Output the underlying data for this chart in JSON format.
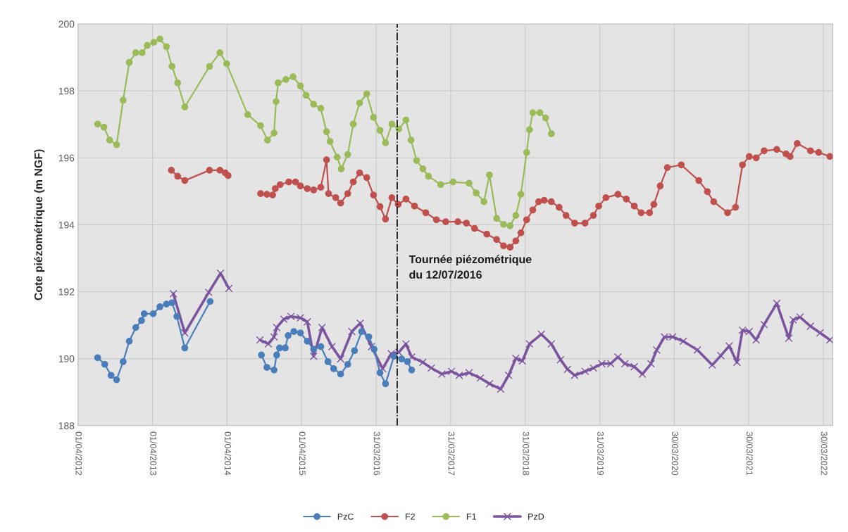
{
  "chart_data": {
    "type": "line",
    "ylabel": "Cote piézométrique (m NGF)",
    "ylim": [
      188,
      200
    ],
    "yticks": [
      188,
      190,
      192,
      194,
      196,
      198,
      200
    ],
    "xlim": [
      "2012-04-01",
      "2022-05-15"
    ],
    "xticks": [
      {
        "value": "2012-04-01",
        "label": "01/04/2012"
      },
      {
        "value": "2013-04-01",
        "label": "01/04/2013"
      },
      {
        "value": "2014-04-01",
        "label": "01/04/2014"
      },
      {
        "value": "2015-04-01",
        "label": "01/04/2015"
      },
      {
        "value": "2016-03-31",
        "label": "31/03/2016"
      },
      {
        "value": "2017-03-31",
        "label": "31/03/2017"
      },
      {
        "value": "2018-03-31",
        "label": "31/03/2018"
      },
      {
        "value": "2019-03-31",
        "label": "31/03/2019"
      },
      {
        "value": "2020-03-30",
        "label": "30/03/2020"
      },
      {
        "value": "2021-03-30",
        "label": "30/03/2021"
      },
      {
        "value": "2022-03-30",
        "label": "30/03/2022"
      }
    ],
    "grid": true,
    "legend": "bottom",
    "ref_lines": [
      {
        "axis": "x",
        "value": "2016-07-12",
        "label": "Tournée piézométrique\ndu 12/07/2016",
        "color": "#000000",
        "line_style": "dashdot"
      }
    ],
    "series": [
      {
        "name": "PzC",
        "color": "#4a7ebb",
        "marker": "circle",
        "x": [
          "2012-07-06",
          "2012-08-10",
          "2012-09-10",
          "2012-10-07",
          "2012-11-08",
          "2012-12-08",
          "2013-01-09",
          "2013-02-06",
          "2013-02-19",
          "2013-04-04",
          "2013-05-07",
          "2013-06-08",
          "2013-07-05",
          "2013-07-29",
          "2013-09-06",
          "2014-01-08",
          "2014-05-15",
          "2014-09-16",
          "2014-10-13",
          "2014-11-17",
          "2014-11-30",
          "2014-12-14",
          "2015-01-11",
          "2015-01-25",
          "2015-02-22",
          "2015-03-26",
          "2015-04-29",
          "2015-05-30",
          "2015-07-04",
          "2015-08-08",
          "2015-09-05",
          "2015-10-09",
          "2015-11-13",
          "2015-12-16",
          "2016-01-20",
          "2016-02-24",
          "2016-03-21",
          "2016-04-19",
          "2016-05-16",
          "2016-06-26",
          "2016-08-03",
          "2016-08-31",
          "2016-09-21"
        ],
        "values": [
          190.03,
          189.83,
          189.5,
          189.37,
          189.91,
          190.52,
          190.93,
          191.14,
          191.34,
          191.34,
          191.55,
          191.63,
          191.67,
          191.26,
          190.32,
          191.71,
          null,
          190.11,
          189.74,
          189.66,
          190.11,
          190.32,
          190.32,
          190.69,
          190.81,
          190.77,
          190.52,
          190.28,
          190.36,
          189.91,
          189.7,
          189.54,
          189.83,
          190.24,
          190.81,
          190.65,
          190.28,
          189.58,
          189.25,
          190.07,
          189.99,
          189.91,
          189.66
        ]
      },
      {
        "name": "F2",
        "color": "#c0504d",
        "marker": "circle",
        "x": [
          "2013-07-02",
          "2013-08-02",
          "2013-09-06",
          "2014-01-05",
          "2014-02-25",
          "2014-03-23",
          "2014-04-06",
          "2014-06-15",
          "2014-09-12",
          "2014-10-13",
          "2014-11-10",
          "2014-11-23",
          "2014-12-17",
          "2015-01-28",
          "2015-03-02",
          "2015-03-26",
          "2015-04-29",
          "2015-05-30",
          "2015-07-04",
          "2015-08-01",
          "2015-08-11",
          "2015-09-15",
          "2015-10-09",
          "2015-11-13",
          "2015-12-10",
          "2016-01-10",
          "2016-02-14",
          "2016-03-18",
          "2016-04-19",
          "2016-05-16",
          "2016-06-16",
          "2016-07-17",
          "2016-08-24",
          "2016-10-05",
          "2016-11-29",
          "2017-01-20",
          "2017-03-07",
          "2017-05-05",
          "2017-06-16",
          "2017-07-26",
          "2017-09-24",
          "2017-11-11",
          "2017-12-15",
          "2018-01-16",
          "2018-02-13",
          "2018-03-10",
          "2018-04-07",
          "2018-05-07",
          "2018-06-05",
          "2018-07-02",
          "2018-08-06",
          "2018-09-13",
          "2018-10-17",
          "2018-11-28",
          "2019-01-18",
          "2019-02-28",
          "2019-03-26",
          "2019-04-30",
          "2019-06-28",
          "2019-08-08",
          "2019-09-16",
          "2019-10-20",
          "2019-11-30",
          "2019-12-21",
          "2020-01-21",
          "2020-02-25",
          "2020-05-03",
          "2020-07-28",
          "2020-09-08",
          "2020-10-09",
          "2020-12-16",
          "2021-01-24",
          "2021-02-27",
          "2021-04-01",
          "2021-05-05",
          "2021-06-13",
          "2021-08-14",
          "2021-09-28",
          "2021-10-18",
          "2021-11-22",
          "2022-01-26",
          "2022-03-07",
          "2022-05-01"
        ],
        "values": [
          195.63,
          195.45,
          195.32,
          195.63,
          195.63,
          195.55,
          195.47,
          null,
          194.93,
          194.91,
          194.89,
          195.08,
          195.2,
          195.28,
          195.28,
          195.16,
          195.08,
          195.04,
          195.12,
          195.94,
          194.93,
          194.81,
          194.65,
          194.93,
          195.28,
          195.55,
          195.41,
          194.89,
          194.54,
          194.17,
          194.81,
          194.61,
          194.77,
          194.56,
          194.36,
          194.15,
          194.09,
          194.09,
          194.05,
          193.89,
          193.72,
          193.56,
          193.37,
          193.33,
          193.52,
          193.76,
          194.15,
          194.44,
          194.69,
          194.73,
          194.69,
          194.52,
          194.28,
          194.05,
          194.05,
          194.28,
          194.56,
          194.81,
          194.91,
          194.77,
          194.56,
          194.36,
          194.36,
          194.61,
          195.16,
          195.71,
          195.79,
          195.32,
          194.99,
          194.69,
          194.36,
          194.52,
          195.79,
          196.04,
          196.0,
          196.21,
          196.25,
          196.12,
          196.04,
          196.43,
          196.21,
          196.16,
          196.04
        ]
      },
      {
        "name": "F1",
        "color": "#9bbb59",
        "marker": "circle",
        "x": [
          "2012-07-06",
          "2012-08-06",
          "2012-09-03",
          "2012-10-07",
          "2012-11-08",
          "2012-12-08",
          "2013-01-09",
          "2013-02-09",
          "2013-03-06",
          "2013-04-07",
          "2013-05-07",
          "2013-06-08",
          "2013-07-05",
          "2013-08-02",
          "2013-09-06",
          "2014-01-05",
          "2014-02-25",
          "2014-03-30",
          "2014-07-11",
          "2014-09-12",
          "2014-10-16",
          "2014-11-17",
          "2014-11-27",
          "2014-12-07",
          "2015-01-14",
          "2015-02-18",
          "2015-03-26",
          "2015-04-23",
          "2015-05-30",
          "2015-07-04",
          "2015-08-01",
          "2015-08-18",
          "2015-09-22",
          "2015-10-12",
          "2015-11-13",
          "2015-12-10",
          "2016-01-10",
          "2016-02-14",
          "2016-03-18",
          "2016-04-19",
          "2016-05-16",
          "2016-06-16",
          "2016-07-20",
          "2016-08-24",
          "2016-09-18",
          "2016-10-15",
          "2016-11-15",
          "2016-12-12",
          "2017-02-10",
          "2017-04-11",
          "2017-06-29",
          "2017-08-03",
          "2017-09-10",
          "2017-10-07",
          "2017-11-11",
          "2017-12-15",
          "2018-01-16",
          "2018-02-13",
          "2018-03-10",
          "2018-04-07",
          "2018-04-21",
          "2018-05-07",
          "2018-06-11",
          "2018-07-09",
          "2018-08-06"
        ],
        "values": [
          197.01,
          196.92,
          196.53,
          196.39,
          197.72,
          198.85,
          199.14,
          199.14,
          199.36,
          199.45,
          199.55,
          199.32,
          198.73,
          198.24,
          197.52,
          198.73,
          199.14,
          198.81,
          197.29,
          196.96,
          196.53,
          196.74,
          197.68,
          198.24,
          198.34,
          198.42,
          198.15,
          197.87,
          197.6,
          197.48,
          196.78,
          196.49,
          196.02,
          195.67,
          196.1,
          197.01,
          197.64,
          197.91,
          197.21,
          196.82,
          196.45,
          197.01,
          196.86,
          197.13,
          196.53,
          195.92,
          195.67,
          195.45,
          195.2,
          195.28,
          195.24,
          194.95,
          194.69,
          195.49,
          194.19,
          194.01,
          193.97,
          194.28,
          194.91,
          196.16,
          196.84,
          197.35,
          197.35,
          197.19,
          196.72
        ]
      },
      {
        "name": "PzD",
        "color": "#7b539f",
        "marker": "cross",
        "x": [
          "2013-07-12",
          "2013-09-06",
          "2014-01-01",
          "2014-02-28",
          "2014-04-10",
          "2014-06-15",
          "2014-09-09",
          "2014-10-20",
          "2014-11-17",
          "2014-11-30",
          "2015-01-04",
          "2015-02-08",
          "2015-03-26",
          "2015-04-29",
          "2015-05-30",
          "2015-07-10",
          "2015-08-28",
          "2015-10-09",
          "2015-12-03",
          "2016-01-13",
          "2016-03-08",
          "2016-05-02",
          "2016-06-13",
          "2016-07-20",
          "2016-08-24",
          "2016-09-21",
          "2016-11-15",
          "2016-12-26",
          "2017-02-16",
          "2017-04-04",
          "2017-05-12",
          "2017-06-29",
          "2017-08-23",
          "2017-10-07",
          "2017-12-01",
          "2018-01-09",
          "2018-02-13",
          "2018-03-17",
          "2018-04-21",
          "2018-06-18",
          "2018-08-06",
          "2018-09-20",
          "2018-10-24",
          "2018-11-28",
          "2019-01-18",
          "2019-02-28",
          "2019-04-10",
          "2019-05-24",
          "2019-06-28",
          "2019-08-01",
          "2019-09-16",
          "2019-10-26",
          "2019-12-07",
          "2020-01-04",
          "2020-02-11",
          "2020-03-22",
          "2020-05-13",
          "2020-07-21",
          "2020-10-02",
          "2020-11-13",
          "2020-12-24",
          "2021-01-31",
          "2021-02-27",
          "2021-04-01",
          "2021-05-05",
          "2021-06-13",
          "2021-08-14",
          "2021-10-12",
          "2021-11-02",
          "2021-12-06",
          "2022-01-26",
          "2022-03-14",
          "2022-05-01"
        ],
        "values": [
          191.94,
          190.77,
          191.98,
          192.55,
          192.1,
          null,
          190.56,
          190.44,
          190.65,
          190.93,
          191.18,
          191.26,
          191.22,
          191.1,
          190.07,
          190.93,
          190.36,
          189.99,
          190.81,
          191.06,
          190.36,
          189.7,
          190.15,
          190.19,
          190.44,
          190.05,
          189.89,
          189.72,
          189.54,
          189.62,
          189.5,
          189.58,
          189.42,
          189.25,
          189.09,
          189.5,
          190.01,
          189.93,
          190.44,
          190.73,
          190.44,
          189.97,
          189.68,
          189.5,
          189.62,
          189.72,
          189.85,
          189.85,
          190.05,
          189.85,
          189.76,
          189.54,
          189.85,
          190.26,
          190.65,
          190.65,
          190.52,
          190.26,
          189.81,
          190.09,
          190.38,
          189.89,
          190.85,
          190.81,
          190.56,
          191.02,
          191.65,
          190.61,
          191.16,
          191.24,
          190.97,
          190.77,
          190.56
        ]
      }
    ]
  }
}
